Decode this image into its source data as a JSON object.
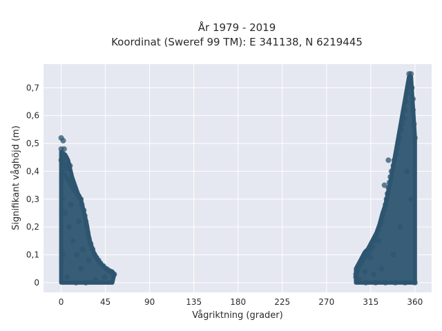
{
  "chart_data": {
    "type": "scatter",
    "title_line1": "År 1979 - 2019",
    "title_line2": "Koordinat (Sweref 99 TM): E 341138, N 6219445",
    "xlabel": "Vågriktning (grader)",
    "ylabel": "Signifikant våghöjd (m)",
    "xlim": [
      -18,
      377
    ],
    "ylim": [
      -0.035,
      0.785
    ],
    "xticks": [
      0,
      45,
      90,
      135,
      180,
      225,
      270,
      315,
      360
    ],
    "yticks": [
      0,
      0.1,
      0.2,
      0.3,
      0.4,
      0.5,
      0.6,
      0.7
    ],
    "ytick_labels": [
      "0",
      "0,1",
      "0,2",
      "0,3",
      "0,4",
      "0,5",
      "0,6",
      "0,7"
    ],
    "grid": true,
    "colors": {
      "background": "#ffffff",
      "plot_background": "#e5e8f0",
      "grid": "#ffffff",
      "marker": "#2e5570"
    },
    "series": [
      {
        "points": [
          [
            0,
            0.52
          ],
          [
            2,
            0.51
          ],
          [
            0,
            0.48
          ],
          [
            3,
            0.48
          ],
          [
            1,
            0.46
          ],
          [
            5,
            0.45
          ],
          [
            0,
            0.44
          ],
          [
            2,
            0.43
          ],
          [
            4,
            0.42
          ],
          [
            6,
            0.41
          ],
          [
            9,
            0.42
          ],
          [
            1,
            0.4
          ],
          [
            3,
            0.39
          ],
          [
            5,
            0.38
          ],
          [
            7,
            0.37
          ],
          [
            9,
            0.36
          ],
          [
            10,
            0.35
          ],
          [
            12,
            0.34
          ],
          [
            14,
            0.33
          ],
          [
            16,
            0.32
          ],
          [
            18,
            0.31
          ],
          [
            20,
            0.3
          ],
          [
            21,
            0.28
          ],
          [
            23,
            0.26
          ],
          [
            24,
            0.24
          ],
          [
            25,
            0.22
          ],
          [
            26,
            0.2
          ],
          [
            27,
            0.18
          ],
          [
            28,
            0.16
          ],
          [
            30,
            0.14
          ],
          [
            32,
            0.12
          ],
          [
            34,
            0.1
          ],
          [
            36,
            0.09
          ],
          [
            38,
            0.08
          ],
          [
            40,
            0.07
          ],
          [
            43,
            0.06
          ],
          [
            46,
            0.05
          ],
          [
            48,
            0.045
          ],
          [
            50,
            0.04
          ],
          [
            52,
            0.035
          ],
          [
            54,
            0.03
          ],
          [
            1,
            0.3
          ],
          [
            4,
            0.25
          ],
          [
            8,
            0.2
          ],
          [
            12,
            0.15
          ],
          [
            16,
            0.1
          ],
          [
            20,
            0.05
          ],
          [
            6,
            0.02
          ],
          [
            15,
            0.0
          ],
          [
            25,
            0.0
          ],
          [
            35,
            0.01
          ],
          [
            44,
            0.02
          ],
          [
            2,
            0.1
          ],
          [
            10,
            0.28
          ],
          [
            18,
            0.22
          ],
          [
            22,
            0.12
          ],
          [
            28,
            0.08
          ]
        ]
      },
      {
        "points": [
          [
            354,
            0.75
          ],
          [
            356,
            0.75
          ],
          [
            355,
            0.72
          ],
          [
            357,
            0.7
          ],
          [
            352,
            0.68
          ],
          [
            358,
            0.66
          ],
          [
            351,
            0.65
          ],
          [
            350,
            0.62
          ],
          [
            358,
            0.62
          ],
          [
            349,
            0.59
          ],
          [
            347,
            0.57
          ],
          [
            359,
            0.57
          ],
          [
            346,
            0.55
          ],
          [
            344,
            0.52
          ],
          [
            360,
            0.52
          ],
          [
            343,
            0.5
          ],
          [
            342,
            0.48
          ],
          [
            341,
            0.46
          ],
          [
            339,
            0.44
          ],
          [
            338,
            0.42
          ],
          [
            336,
            0.4
          ],
          [
            335,
            0.38
          ],
          [
            334,
            0.36
          ],
          [
            333,
            0.34
          ],
          [
            332,
            0.32
          ],
          [
            331,
            0.3
          ],
          [
            330,
            0.28
          ],
          [
            329,
            0.26
          ],
          [
            327,
            0.24
          ],
          [
            326,
            0.22
          ],
          [
            325,
            0.21
          ],
          [
            323,
            0.19
          ],
          [
            321,
            0.17
          ],
          [
            319,
            0.15
          ],
          [
            317,
            0.13
          ],
          [
            315,
            0.12
          ],
          [
            313,
            0.11
          ],
          [
            311,
            0.1
          ],
          [
            309,
            0.09
          ],
          [
            307,
            0.08
          ],
          [
            305,
            0.07
          ],
          [
            303,
            0.06
          ],
          [
            302,
            0.05
          ],
          [
            301,
            0.04
          ],
          [
            300,
            0.03
          ],
          [
            300,
            0.02
          ],
          [
            303,
            0.01
          ],
          [
            310,
            0.0
          ],
          [
            320,
            0.0
          ],
          [
            330,
            0.0
          ],
          [
            340,
            0.0
          ],
          [
            350,
            0.0
          ],
          [
            360,
            0.0
          ],
          [
            345,
            0.2
          ],
          [
            352,
            0.4
          ],
          [
            356,
            0.3
          ],
          [
            338,
            0.1
          ],
          [
            326,
            0.05
          ],
          [
            318,
            0.03
          ],
          [
            329,
            0.35
          ],
          [
            333,
            0.44
          ],
          [
            323,
            0.15
          ],
          [
            315,
            0.09
          ],
          [
            309,
            0.04
          ]
        ]
      }
    ],
    "fill_regions": [
      {
        "polygon": [
          [
            0,
            0.47
          ],
          [
            4,
            0.46
          ],
          [
            7,
            0.44
          ],
          [
            9,
            0.41
          ],
          [
            11,
            0.38
          ],
          [
            14,
            0.35
          ],
          [
            17,
            0.32
          ],
          [
            20,
            0.3
          ],
          [
            22,
            0.27
          ],
          [
            24,
            0.24
          ],
          [
            26,
            0.21
          ],
          [
            28,
            0.17
          ],
          [
            30,
            0.14
          ],
          [
            33,
            0.11
          ],
          [
            36,
            0.09
          ],
          [
            40,
            0.07
          ],
          [
            44,
            0.055
          ],
          [
            48,
            0.045
          ],
          [
            52,
            0.04
          ],
          [
            54,
            0.03
          ],
          [
            52,
            0.0
          ],
          [
            0,
            0.0
          ]
        ]
      },
      {
        "polygon": [
          [
            300,
            0.0
          ],
          [
            300,
            0.05
          ],
          [
            303,
            0.07
          ],
          [
            306,
            0.09
          ],
          [
            309,
            0.11
          ],
          [
            312,
            0.12
          ],
          [
            315,
            0.14
          ],
          [
            318,
            0.16
          ],
          [
            321,
            0.18
          ],
          [
            324,
            0.21
          ],
          [
            327,
            0.25
          ],
          [
            330,
            0.28
          ],
          [
            333,
            0.33
          ],
          [
            336,
            0.38
          ],
          [
            339,
            0.44
          ],
          [
            342,
            0.5
          ],
          [
            345,
            0.56
          ],
          [
            348,
            0.62
          ],
          [
            350,
            0.66
          ],
          [
            352,
            0.7
          ],
          [
            354,
            0.74
          ],
          [
            356,
            0.74
          ],
          [
            358,
            0.63
          ],
          [
            360,
            0.52
          ],
          [
            360,
            0.0
          ]
        ]
      }
    ]
  }
}
